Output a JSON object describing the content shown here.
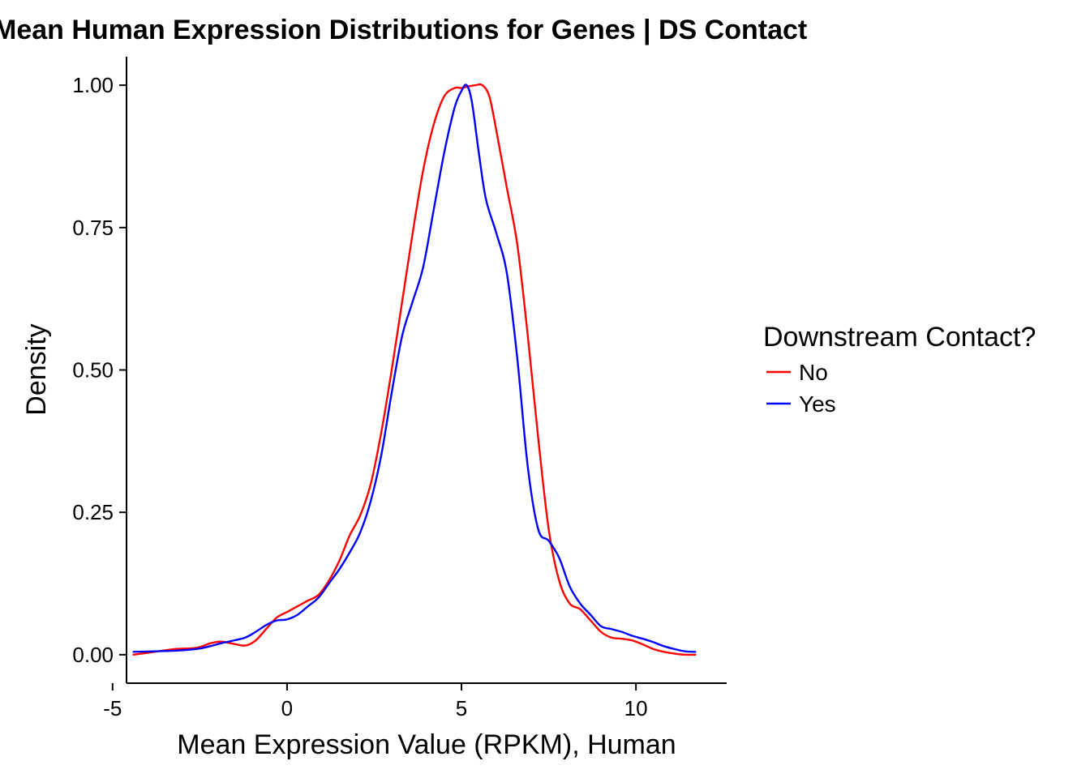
{
  "chart_data": {
    "type": "line",
    "title": "Mean Human Expression Distributions for Genes | DS Contact",
    "xlabel": "Mean Expression Value (RPKM), Human",
    "ylabel": "Density",
    "xlim": [
      -4.6,
      12.6
    ],
    "ylim": [
      -0.05,
      1.05
    ],
    "x_ticks": [
      -5,
      0,
      5,
      10
    ],
    "x_tick_labels": [
      "-5",
      "0",
      "5",
      "10"
    ],
    "y_ticks": [
      0,
      0.25,
      0.5,
      0.75,
      1.0
    ],
    "y_tick_labels": [
      "0.00",
      "0.25",
      "0.50",
      "0.75",
      "1.00"
    ],
    "grid": false,
    "legend": {
      "title": "Downstream Contact?",
      "position": "right"
    },
    "series": [
      {
        "name": "No",
        "color": "#FF0000",
        "x": [
          -4.4,
          -3.8,
          -3.2,
          -2.6,
          -2.2,
          -1.9,
          -1.6,
          -1.2,
          -0.9,
          -0.6,
          -0.3,
          0.0,
          0.3,
          0.6,
          0.9,
          1.2,
          1.5,
          1.8,
          2.1,
          2.4,
          2.7,
          3.0,
          3.3,
          3.6,
          3.9,
          4.2,
          4.5,
          4.8,
          5.0,
          5.2,
          5.4,
          5.6,
          5.8,
          6.0,
          6.3,
          6.6,
          6.9,
          7.2,
          7.5,
          7.8,
          8.1,
          8.4,
          8.7,
          9.0,
          9.3,
          9.6,
          9.9,
          10.2,
          10.5,
          10.8,
          11.1,
          11.4,
          11.7
        ],
        "y": [
          0.0,
          0.005,
          0.01,
          0.012,
          0.02,
          0.023,
          0.02,
          0.016,
          0.025,
          0.045,
          0.065,
          0.075,
          0.085,
          0.095,
          0.105,
          0.13,
          0.165,
          0.21,
          0.245,
          0.3,
          0.39,
          0.5,
          0.62,
          0.74,
          0.85,
          0.93,
          0.98,
          0.995,
          0.995,
          0.998,
          1.0,
          1.0,
          0.98,
          0.92,
          0.82,
          0.72,
          0.56,
          0.38,
          0.22,
          0.13,
          0.09,
          0.08,
          0.06,
          0.04,
          0.03,
          0.028,
          0.025,
          0.018,
          0.01,
          0.005,
          0.002,
          0.0,
          0.0
        ]
      },
      {
        "name": "Yes",
        "color": "#0000FF",
        "x": [
          -4.4,
          -3.8,
          -3.2,
          -2.6,
          -2.2,
          -1.9,
          -1.6,
          -1.2,
          -0.9,
          -0.6,
          -0.3,
          0.0,
          0.3,
          0.6,
          0.9,
          1.2,
          1.5,
          1.8,
          2.1,
          2.4,
          2.7,
          3.0,
          3.3,
          3.6,
          3.9,
          4.2,
          4.5,
          4.8,
          5.0,
          5.15,
          5.3,
          5.5,
          5.7,
          6.0,
          6.3,
          6.6,
          6.9,
          7.2,
          7.5,
          7.8,
          8.1,
          8.4,
          8.7,
          9.0,
          9.3,
          9.6,
          9.9,
          10.2,
          10.5,
          10.8,
          11.1,
          11.4,
          11.7
        ],
        "y": [
          0.005,
          0.006,
          0.007,
          0.01,
          0.015,
          0.02,
          0.024,
          0.03,
          0.04,
          0.052,
          0.06,
          0.062,
          0.07,
          0.085,
          0.1,
          0.125,
          0.15,
          0.18,
          0.215,
          0.27,
          0.35,
          0.46,
          0.56,
          0.62,
          0.68,
          0.78,
          0.88,
          0.96,
          0.99,
          1.0,
          0.97,
          0.88,
          0.8,
          0.74,
          0.67,
          0.52,
          0.33,
          0.22,
          0.2,
          0.17,
          0.12,
          0.09,
          0.07,
          0.05,
          0.045,
          0.04,
          0.033,
          0.028,
          0.022,
          0.015,
          0.01,
          0.006,
          0.005
        ]
      }
    ]
  }
}
